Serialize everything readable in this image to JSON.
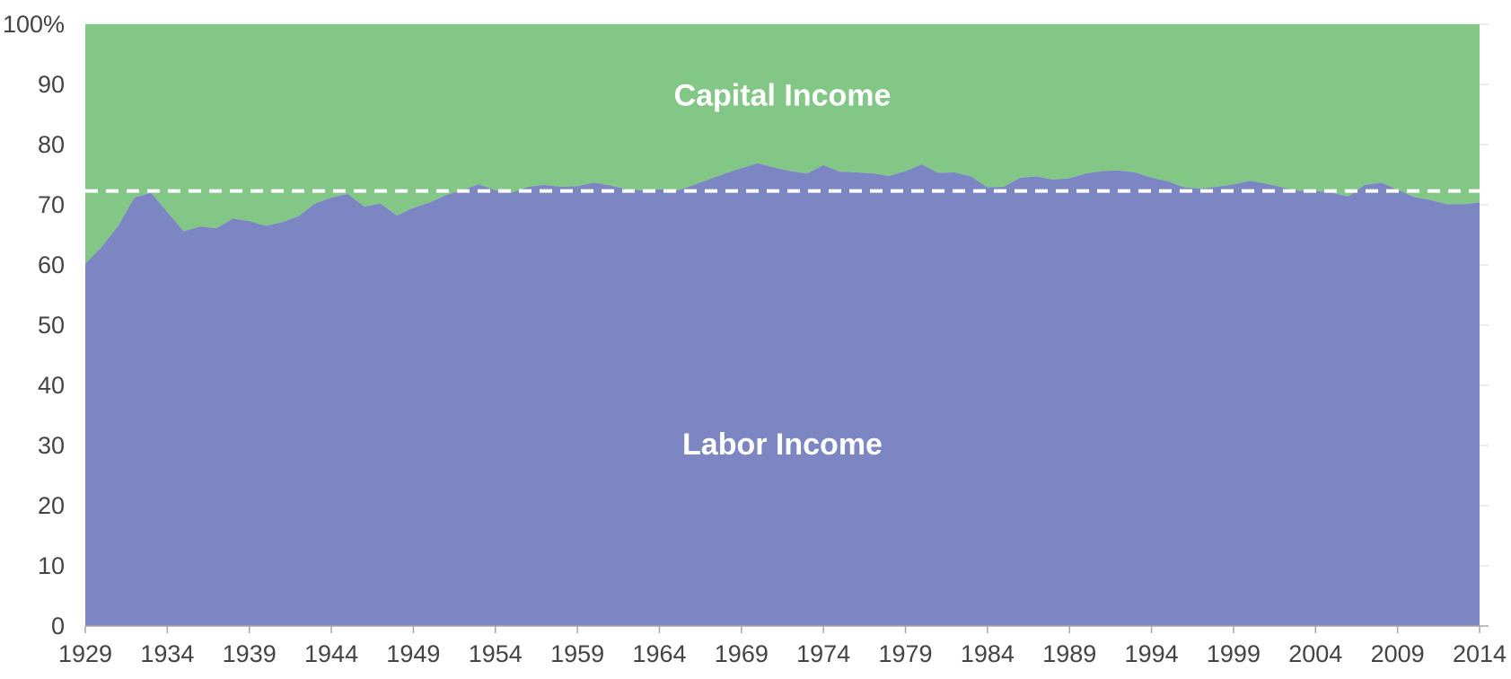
{
  "chart_data": {
    "type": "area",
    "stacked": true,
    "x": [
      1929,
      1930,
      1931,
      1932,
      1933,
      1934,
      1935,
      1936,
      1937,
      1938,
      1939,
      1940,
      1941,
      1942,
      1943,
      1944,
      1945,
      1946,
      1947,
      1948,
      1949,
      1950,
      1951,
      1952,
      1953,
      1954,
      1955,
      1956,
      1957,
      1958,
      1959,
      1960,
      1961,
      1962,
      1963,
      1964,
      1965,
      1966,
      1967,
      1968,
      1969,
      1970,
      1971,
      1972,
      1973,
      1974,
      1975,
      1976,
      1977,
      1978,
      1979,
      1980,
      1981,
      1982,
      1983,
      1984,
      1985,
      1986,
      1987,
      1988,
      1989,
      1990,
      1991,
      1992,
      1993,
      1994,
      1995,
      1996,
      1997,
      1998,
      1999,
      2000,
      2001,
      2002,
      2003,
      2004,
      2005,
      2006,
      2007,
      2008,
      2009,
      2010,
      2011,
      2012,
      2013,
      2014
    ],
    "series": [
      {
        "name": "Labor Income",
        "color": "#7b86c2",
        "values": [
          60.2,
          63.0,
          66.5,
          71.2,
          72.0,
          68.8,
          65.6,
          66.4,
          66.1,
          67.7,
          67.3,
          66.5,
          67.1,
          68.1,
          70.2,
          71.2,
          71.8,
          69.7,
          70.2,
          68.2,
          69.5,
          70.4,
          71.6,
          72.5,
          73.4,
          72.4,
          72.0,
          73.0,
          73.3,
          73.0,
          73.1,
          73.7,
          73.2,
          72.6,
          72.4,
          72.6,
          72.3,
          73.2,
          74.2,
          75.2,
          76.1,
          76.9,
          76.2,
          75.6,
          75.2,
          76.6,
          75.5,
          75.4,
          75.2,
          74.8,
          75.6,
          76.7,
          75.3,
          75.4,
          74.7,
          72.9,
          73.0,
          74.5,
          74.7,
          74.2,
          74.4,
          75.2,
          75.6,
          75.7,
          75.4,
          74.5,
          73.9,
          72.9,
          72.7,
          73.0,
          73.4,
          74.0,
          73.5,
          72.9,
          72.3,
          72.3,
          72.0,
          71.4,
          73.3,
          73.7,
          72.5,
          71.3,
          70.8,
          70.1,
          70.1,
          70.4
        ]
      },
      {
        "name": "Capital Income",
        "color": "#82c785",
        "values": [
          39.8,
          37.0,
          33.5,
          28.8,
          28.0,
          31.2,
          34.4,
          33.6,
          33.9,
          32.3,
          32.7,
          33.5,
          32.9,
          31.9,
          29.8,
          28.8,
          28.2,
          30.3,
          29.8,
          31.8,
          30.5,
          29.6,
          28.4,
          27.5,
          26.6,
          27.6,
          28.0,
          27.0,
          26.7,
          27.0,
          26.9,
          26.3,
          26.8,
          27.4,
          27.6,
          27.4,
          27.7,
          26.8,
          25.8,
          24.8,
          23.9,
          23.1,
          23.8,
          24.4,
          24.8,
          23.4,
          24.5,
          24.6,
          24.8,
          25.2,
          24.4,
          23.3,
          24.7,
          24.6,
          25.3,
          27.1,
          27.0,
          25.5,
          25.3,
          25.8,
          25.6,
          24.8,
          24.4,
          24.3,
          24.6,
          25.5,
          26.1,
          27.1,
          27.3,
          27.0,
          26.6,
          26.0,
          26.5,
          27.1,
          27.7,
          27.7,
          28.0,
          28.6,
          26.7,
          26.3,
          27.5,
          28.7,
          29.2,
          29.9,
          29.9,
          29.6
        ]
      }
    ],
    "average_line": {
      "value": 72.3,
      "style": "dashed",
      "color": "#ffffff"
    },
    "x_ticks": [
      "1929",
      "1934",
      "1939",
      "1944",
      "1949",
      "1954",
      "1959",
      "1964",
      "1969",
      "1974",
      "1979",
      "1984",
      "1989",
      "1994",
      "1999",
      "2004",
      "2009",
      "2014"
    ],
    "y_ticks": [
      "0",
      "10",
      "20",
      "30",
      "40",
      "50",
      "60",
      "70",
      "80",
      "90",
      "100%"
    ],
    "ylim": [
      0,
      100
    ],
    "xlim": [
      1929,
      2014
    ],
    "grid": true,
    "area_labels": {
      "capital": "Capital Income",
      "labor": "Labor Income"
    },
    "title": "",
    "xlabel": "",
    "ylabel": ""
  }
}
